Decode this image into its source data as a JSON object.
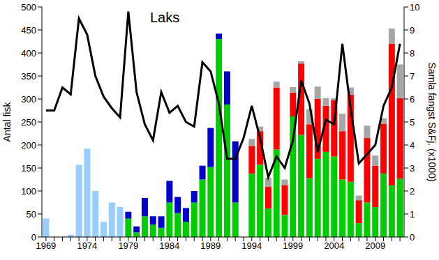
{
  "chart_data": {
    "type": "bar",
    "title": "Laks",
    "stacked": true,
    "y_label": "Antal fisk",
    "y2_label": "Samla fangst S&Fj. (x1000)",
    "ylim": [
      0,
      500
    ],
    "yticks": [
      0,
      50,
      100,
      150,
      200,
      250,
      300,
      350,
      400,
      450,
      500
    ],
    "y2lim": [
      0,
      10
    ],
    "y2ticks": [
      0,
      1,
      2,
      3,
      4,
      5,
      6,
      7,
      8,
      9,
      10
    ],
    "categories": [
      "1969",
      null,
      null,
      null,
      null,
      "1974",
      null,
      null,
      null,
      null,
      "1979",
      null,
      null,
      null,
      null,
      "1984",
      null,
      null,
      null,
      null,
      "1989",
      null,
      null,
      null,
      null,
      "1994",
      null,
      null,
      null,
      null,
      "1999",
      null,
      null,
      null,
      null,
      "2004",
      null,
      null,
      null,
      null,
      "2009",
      null,
      null,
      null
    ],
    "series": [
      {
        "color": "#99ccff",
        "values": [
          40,
          0,
          0,
          5,
          157,
          192,
          100,
          33,
          75,
          65,
          null,
          null,
          null,
          null,
          null,
          null,
          null,
          null,
          null,
          null,
          null,
          null,
          null,
          null,
          null,
          null,
          null,
          null,
          null,
          null,
          null,
          null,
          null,
          null,
          null,
          null,
          null,
          null,
          null,
          null,
          null,
          null,
          null,
          null
        ]
      },
      {
        "color": "#00cc00",
        "values": [
          null,
          null,
          null,
          null,
          null,
          null,
          null,
          null,
          null,
          null,
          40,
          10,
          45,
          27,
          20,
          75,
          52,
          33,
          75,
          125,
          152,
          430,
          288,
          75,
          null,
          138,
          157,
          62,
          190,
          48,
          262,
          222,
          128,
          170,
          185,
          175,
          125,
          120,
          30,
          75,
          65,
          138,
          112,
          127
        ]
      },
      {
        "color": "#0000cc",
        "values": [
          null,
          null,
          null,
          null,
          null,
          null,
          null,
          null,
          null,
          null,
          15,
          13,
          40,
          18,
          25,
          47,
          35,
          30,
          25,
          30,
          85,
          12,
          72,
          133,
          null,
          null,
          null,
          null,
          null,
          null,
          null,
          null,
          null,
          null,
          null,
          null,
          null,
          null,
          null,
          null,
          null,
          null,
          null,
          null
        ]
      },
      {
        "color": "#ff0000",
        "values": [
          null,
          null,
          null,
          null,
          null,
          null,
          null,
          null,
          null,
          null,
          null,
          null,
          null,
          null,
          null,
          null,
          null,
          null,
          null,
          null,
          null,
          null,
          null,
          null,
          null,
          60,
          73,
          47,
          135,
          65,
          52,
          155,
          117,
          130,
          100,
          122,
          105,
          190,
          50,
          140,
          90,
          108,
          308,
          175
        ]
      },
      {
        "color": "#a6a6a6",
        "values": [
          null,
          null,
          null,
          null,
          null,
          null,
          null,
          null,
          null,
          null,
          null,
          null,
          null,
          null,
          null,
          null,
          null,
          null,
          null,
          null,
          null,
          null,
          null,
          null,
          null,
          15,
          10,
          20,
          13,
          12,
          12,
          5,
          33,
          27,
          17,
          5,
          38,
          15,
          10,
          27,
          22,
          12,
          33,
          73
        ]
      },
      {
        "type": "line",
        "axis": "y2",
        "color": "#000000",
        "values": [
          5.5,
          5.5,
          6.5,
          6.2,
          9.5,
          8.8,
          7.0,
          6.1,
          5.6,
          5.2,
          9.8,
          6.3,
          4.9,
          4.2,
          6.3,
          5.4,
          5.7,
          5.0,
          4.8,
          7.6,
          7.2,
          5.8,
          3.4,
          3.4,
          4.3,
          5.7,
          4.3,
          2.6,
          3.5,
          3.0,
          4.2,
          6.8,
          5.8,
          3.7,
          5.1,
          4.9,
          8.4,
          5.6,
          3.2,
          3.6,
          4.0,
          5.7,
          6.5,
          8.4
        ]
      }
    ]
  }
}
